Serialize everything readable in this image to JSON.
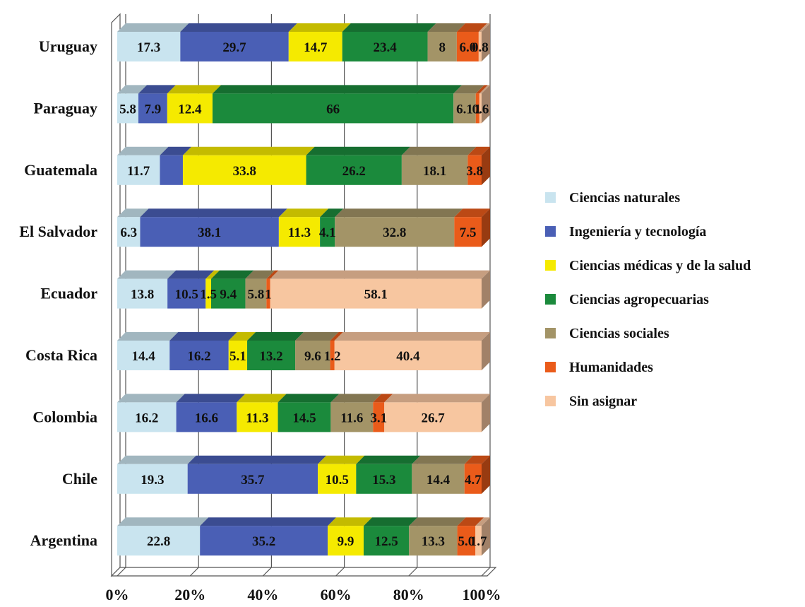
{
  "chart_data": {
    "type": "bar",
    "orientation": "horizontal",
    "stacking": "percent",
    "style": "3d",
    "categories": [
      "Uruguay",
      "Paraguay",
      "Guatemala",
      "El Salvador",
      "Ecuador",
      "Costa Rica",
      "Colombia",
      "Chile",
      "Argentina"
    ],
    "xlim": [
      0,
      100
    ],
    "x_ticks": [
      "0%",
      "20%",
      "40%",
      "60%",
      "80%",
      "100%"
    ],
    "grid": true,
    "legend_position": "right",
    "series": [
      {
        "name": "Ciencias naturales",
        "color": "#c9e4ef",
        "values": [
          17.3,
          5.8,
          11.7,
          6.3,
          13.8,
          14.4,
          16.2,
          19.3,
          22.8
        ],
        "labels": [
          "17.3",
          "5.8",
          "11.7",
          "6.3",
          "13.8",
          "14.4",
          "16.2",
          "19.3",
          "22.8"
        ]
      },
      {
        "name": "Ingeniería y tecnología",
        "color": "#4a5fb5",
        "values": [
          29.7,
          7.9,
          6.3,
          38.1,
          10.5,
          16.2,
          16.6,
          35.7,
          35.2
        ],
        "labels": [
          "29.7",
          "7.9",
          "",
          "38.1",
          "10.5",
          "16.2",
          "16.6",
          "35.7",
          "35.2"
        ]
      },
      {
        "name": "Ciencias médicas y de la salud",
        "color": "#f5ea00",
        "values": [
          14.7,
          12.4,
          33.8,
          11.3,
          1.5,
          5.1,
          11.3,
          10.5,
          9.9
        ],
        "labels": [
          "14.7",
          "12.4",
          "33.8",
          "11.3",
          "1.5",
          "5.1",
          "11.3",
          "10.5",
          "9.9"
        ]
      },
      {
        "name": "Ciencias agropecuarias",
        "color": "#1b8a3c",
        "values": [
          23.4,
          66,
          26.2,
          4.1,
          9.4,
          13.2,
          14.5,
          15.3,
          12.5
        ],
        "labels": [
          "23.4",
          "66",
          "26.2",
          "4.1",
          "9.4",
          "13.2",
          "14.5",
          "15.3",
          "12.5"
        ]
      },
      {
        "name": "Ciencias sociales",
        "color": "#a39467",
        "values": [
          8,
          6.1,
          18.1,
          32.8,
          5.8,
          9.6,
          11.6,
          14.4,
          13.3
        ],
        "labels": [
          "8",
          "6.1",
          "18.1",
          "32.8",
          "5.8",
          "9.6",
          "11.6",
          "14.4",
          "13.3"
        ]
      },
      {
        "name": "Humanidades",
        "color": "#ea5b1a",
        "values": [
          6.0,
          1,
          3.8,
          7.5,
          1,
          1.2,
          3.1,
          4.7,
          5.0
        ],
        "labels": [
          "6.0",
          "1",
          "3.8",
          "7.5",
          "1",
          "1.2",
          "3.1",
          "4.7",
          "5.0"
        ]
      },
      {
        "name": "Sin asignar",
        "color": "#f7c6a0",
        "values": [
          0.8,
          0.6,
          0,
          0,
          58.1,
          40.4,
          26.7,
          0,
          1.7
        ],
        "labels": [
          "0.8",
          "0.6",
          "",
          "",
          "58.1",
          "40.4",
          "26.7",
          "",
          "1.7"
        ]
      }
    ]
  }
}
